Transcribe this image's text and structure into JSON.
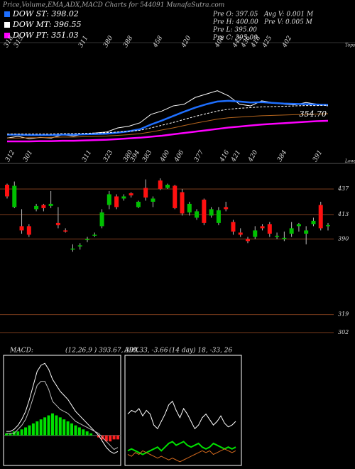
{
  "title": "Price,Volume,EMA,ADX,MACD Charts for 544091 MunafaSutra.com",
  "info": [
    "Pre O: 397.05",
    "Pre H: 400.00",
    "Pre L: 395.00",
    "Pre C: 395.00",
    "Avg V: 0.001 M",
    "Pre V: 0.005 M"
  ],
  "chart_data": [
    {
      "type": "line",
      "ylim": [
        225,
        582
      ],
      "series": [
        {
          "color": "#ffffff",
          "width": 1,
          "values": [
            300,
            305,
            298,
            302,
            300,
            310,
            306,
            312,
            315,
            318,
            330,
            335,
            345,
            370,
            380,
            395,
            400,
            420,
            430,
            440,
            425,
            400,
            395,
            410,
            405,
            400,
            398,
            405,
            400,
            395
          ]
        },
        {
          "name": "DOW ST: 398.02",
          "color": "#1e6fff",
          "width": 2.5,
          "values": [
            310,
            310,
            309,
            309,
            309,
            310,
            310,
            311,
            312,
            313,
            316,
            320,
            326,
            340,
            352,
            365,
            378,
            390,
            400,
            408,
            410,
            408,
            405,
            406,
            404,
            402,
            401,
            400,
            399,
            398
          ]
        },
        {
          "name": "DOW MT: 396.55",
          "color": "#ffffff",
          "width": 1,
          "style": "dashed",
          "values": [
            312,
            312,
            312,
            312,
            312,
            313,
            313,
            314,
            315,
            316,
            318,
            320,
            323,
            330,
            338,
            346,
            355,
            364,
            372,
            380,
            385,
            388,
            390,
            392,
            393,
            394,
            395,
            396,
            396,
            397
          ]
        },
        {
          "color": "#b5651d",
          "width": 1,
          "values": [
            300,
            300,
            301,
            301,
            302,
            303,
            303,
            304,
            305,
            306,
            308,
            310,
            313,
            318,
            324,
            330,
            337,
            344,
            350,
            356,
            360,
            362,
            364,
            366,
            367,
            368,
            369,
            370,
            371,
            372
          ]
        },
        {
          "name": "DOW PT: 351.03",
          "color": "#ff00ff",
          "width": 2.5,
          "values": [
            290,
            290,
            290,
            291,
            291,
            292,
            292,
            293,
            294,
            295,
            297,
            299,
            301,
            304,
            307,
            311,
            315,
            319,
            323,
            327,
            331,
            334,
            337,
            340,
            342,
            344,
            346,
            348,
            350,
            351
          ]
        }
      ],
      "tops_label": "Tops",
      "tops": [
        318,
        315,
        311,
        380,
        388,
        458,
        420,
        400,
        443,
        436,
        418,
        425,
        402
      ],
      "lows_label": "Lows",
      "lows": [
        312,
        301,
        311,
        323,
        380,
        394,
        383,
        400,
        406,
        377,
        416,
        421,
        420,
        384,
        391
      ],
      "price_label": "354.70"
    },
    {
      "type": "candlestick",
      "ylim": [
        294,
        451
      ],
      "yticks": [
        437,
        413,
        390,
        319,
        302
      ],
      "grid_color": "#7a3b1c",
      "up_color": "#00c000",
      "down_color": "#ff1010",
      "open": [
        441,
        420,
        402,
        402,
        418,
        422,
        421,
        405,
        398,
        380,
        383,
        389,
        393,
        402,
        422,
        430,
        428,
        433,
        420,
        438,
        425,
        445,
        438,
        440,
        434,
        415,
        410,
        427,
        412,
        405,
        420,
        406,
        396,
        390,
        392,
        402,
        404,
        392,
        390,
        395,
        402,
        395,
        404,
        422,
        402
      ],
      "high": [
        442,
        444,
        418,
        404,
        423,
        423,
        435,
        420,
        400,
        385,
        386,
        392,
        396,
        418,
        435,
        432,
        432,
        434,
        426,
        446,
        430,
        447,
        442,
        441,
        437,
        425,
        418,
        428,
        420,
        420,
        425,
        408,
        400,
        392,
        402,
        404,
        406,
        396,
        397,
        406,
        405,
        402,
        410,
        425,
        405
      ],
      "low": [
        428,
        419,
        395,
        392,
        416,
        416,
        419,
        400,
        396,
        378,
        380,
        387,
        392,
        400,
        418,
        418,
        426,
        429,
        419,
        426,
        420,
        436,
        437,
        418,
        412,
        412,
        408,
        403,
        410,
        403,
        416,
        394,
        392,
        386,
        390,
        398,
        392,
        390,
        388,
        392,
        397,
        385,
        402,
        398,
        398
      ],
      "close": [
        430,
        440,
        398,
        394,
        421,
        419,
        423,
        403,
        397,
        381,
        384,
        390,
        394,
        415,
        432,
        420,
        430,
        431,
        425,
        429,
        428,
        437,
        441,
        419,
        414,
        423,
        416,
        405,
        418,
        417,
        418,
        397,
        394,
        388,
        398,
        400,
        395,
        393,
        391,
        400,
        404,
        398,
        407,
        400,
        403
      ]
    },
    {
      "type": "macd",
      "label": "MACD:",
      "params": "(12,26,9 ) 393.67, 399.33, -3.66",
      "ylim": [
        -15,
        40
      ],
      "pos_color": "#00e000",
      "neg_color": "#ff2020",
      "histogram": [
        1,
        1,
        2,
        2,
        3,
        4,
        5,
        6,
        7,
        8,
        9,
        10,
        11,
        10,
        9,
        8,
        7,
        6,
        5,
        4,
        3,
        2,
        1,
        0,
        -1,
        -2,
        -3,
        -3,
        -2,
        -2
      ],
      "series": [
        {
          "color": "#ffffff",
          "values": [
            2,
            2,
            3,
            5,
            8,
            12,
            18,
            25,
            32,
            35,
            36,
            33,
            28,
            25,
            22,
            20,
            18,
            15,
            12,
            10,
            8,
            6,
            4,
            2,
            0,
            -3,
            -6,
            -8,
            -9,
            -8
          ]
        },
        {
          "color": "#bbbbbb",
          "values": [
            1,
            1,
            1,
            3,
            5,
            8,
            13,
            19,
            25,
            27,
            27,
            23,
            17,
            15,
            13,
            12,
            11,
            9,
            7,
            6,
            5,
            4,
            3,
            2,
            1,
            -1,
            -3,
            -5,
            -7,
            -6
          ]
        }
      ]
    },
    {
      "type": "adx",
      "label": "ADX",
      "params": "(14 day) 18, -33, 26",
      "ylim": [
        0,
        60
      ],
      "series": [
        {
          "color": "#ffffff",
          "values": [
            28,
            30,
            29,
            31,
            27,
            30,
            28,
            22,
            20,
            24,
            28,
            33,
            35,
            30,
            26,
            31,
            28,
            24,
            20,
            22,
            26,
            28,
            25,
            22,
            24,
            27,
            23,
            21,
            22,
            24
          ]
        },
        {
          "color": "#00e000",
          "width": 2,
          "values": [
            8,
            9,
            8,
            7,
            6,
            7,
            8,
            9,
            10,
            8,
            10,
            12,
            13,
            11,
            12,
            13,
            11,
            10,
            11,
            12,
            10,
            9,
            10,
            12,
            11,
            10,
            9,
            10,
            9,
            10
          ]
        },
        {
          "color": "#d2691e",
          "values": [
            6,
            5,
            7,
            6,
            8,
            7,
            6,
            5,
            4,
            5,
            4,
            3,
            4,
            3,
            2,
            3,
            4,
            5,
            6,
            7,
            8,
            7,
            8,
            6,
            7,
            8,
            9,
            8,
            7,
            8
          ]
        }
      ]
    }
  ]
}
